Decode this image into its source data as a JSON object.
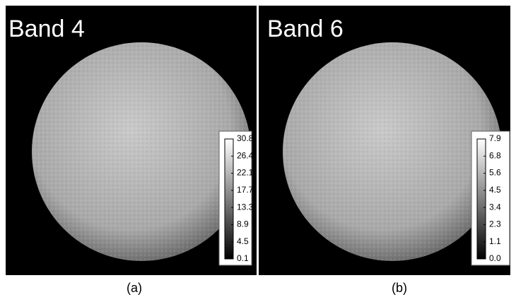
{
  "panels": [
    {
      "label": "Band 4",
      "caption": "(a)",
      "colorbar": {
        "ticks": [
          "30.8",
          "26.4",
          "22.1",
          "17.7",
          "13.3",
          "8.9",
          "4.5",
          "0.1"
        ]
      }
    },
    {
      "label": "Band 6",
      "caption": "(b)",
      "colorbar": {
        "ticks": [
          "7.9",
          "6.8",
          "5.6",
          "4.5",
          "3.4",
          "2.3",
          "1.1",
          "0.0"
        ]
      }
    }
  ]
}
